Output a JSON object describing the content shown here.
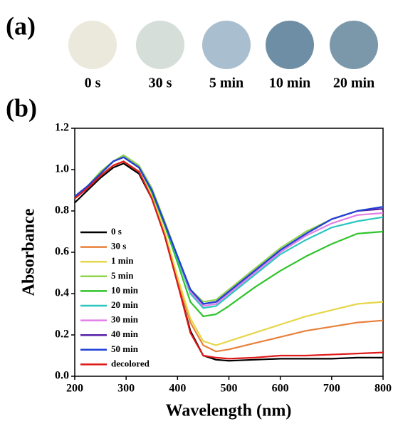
{
  "panel_a": {
    "label": "(a)",
    "samples": [
      {
        "label": "0 s",
        "color": "#ebe9dc"
      },
      {
        "label": "30 s",
        "color": "#d5ded8"
      },
      {
        "label": "5 min",
        "color": "#a9bfcf"
      },
      {
        "label": "10 min",
        "color": "#6e8ea5"
      },
      {
        "label": "20 min",
        "color": "#7b98ab"
      }
    ]
  },
  "chart_data": {
    "type": "line",
    "panel_label": "(b)",
    "x_label": "Wavelength (nm)",
    "y_label": "Absorbance",
    "x": [
      200,
      225,
      250,
      275,
      295,
      325,
      350,
      375,
      400,
      425,
      450,
      475,
      500,
      550,
      600,
      650,
      700,
      750,
      800
    ],
    "xlim": [
      200,
      800
    ],
    "xticks": [
      200,
      300,
      400,
      500,
      600,
      700,
      800
    ],
    "ylim": [
      0,
      1.2
    ],
    "yticks": [
      {
        "value": 0,
        "label": "0.0"
      },
      0.2,
      0.4,
      0.6,
      0.8,
      {
        "value": 1,
        "label": "1.0"
      },
      1.2
    ],
    "legend": "lower-left",
    "series": [
      {
        "name": "0 s",
        "color": "#000000",
        "values": [
          0.84,
          0.9,
          0.96,
          1.01,
          1.03,
          0.98,
          0.86,
          0.68,
          0.45,
          0.22,
          0.1,
          0.08,
          0.075,
          0.08,
          0.085,
          0.085,
          0.085,
          0.09,
          0.09
        ]
      },
      {
        "name": "30 s",
        "color": "#e8803a",
        "values": [
          0.86,
          0.91,
          0.97,
          1.02,
          1.04,
          0.99,
          0.87,
          0.69,
          0.47,
          0.26,
          0.15,
          0.12,
          0.13,
          0.16,
          0.19,
          0.22,
          0.24,
          0.26,
          0.27
        ]
      },
      {
        "name": "1 min",
        "color": "#e6d64a",
        "values": [
          0.86,
          0.91,
          0.97,
          1.02,
          1.04,
          0.99,
          0.87,
          0.7,
          0.48,
          0.28,
          0.17,
          0.15,
          0.17,
          0.21,
          0.25,
          0.29,
          0.32,
          0.35,
          0.36
        ]
      },
      {
        "name": "5 min",
        "color": "#8fd44a",
        "values": [
          0.87,
          0.92,
          0.99,
          1.04,
          1.07,
          1.02,
          0.91,
          0.75,
          0.58,
          0.42,
          0.36,
          0.37,
          0.42,
          0.52,
          0.62,
          0.7,
          0.76,
          0.8,
          0.82
        ]
      },
      {
        "name": "10 min",
        "color": "#2fc42a",
        "values": [
          0.87,
          0.92,
          0.98,
          1.04,
          1.06,
          1.01,
          0.89,
          0.73,
          0.55,
          0.36,
          0.29,
          0.3,
          0.34,
          0.43,
          0.51,
          0.58,
          0.64,
          0.69,
          0.7
        ]
      },
      {
        "name": "20 min",
        "color": "#2cc6c0",
        "values": [
          0.87,
          0.92,
          0.98,
          1.04,
          1.06,
          1.01,
          0.9,
          0.74,
          0.57,
          0.4,
          0.33,
          0.34,
          0.39,
          0.49,
          0.59,
          0.66,
          0.72,
          0.75,
          0.77
        ]
      },
      {
        "name": "30 min",
        "color": "#e27ee8",
        "values": [
          0.87,
          0.92,
          0.98,
          1.04,
          1.06,
          1.01,
          0.9,
          0.74,
          0.58,
          0.41,
          0.34,
          0.35,
          0.4,
          0.5,
          0.6,
          0.68,
          0.74,
          0.78,
          0.79
        ]
      },
      {
        "name": "40 min",
        "color": "#5a1fa8",
        "values": [
          0.87,
          0.92,
          0.98,
          1.04,
          1.06,
          1.01,
          0.9,
          0.74,
          0.58,
          0.42,
          0.35,
          0.36,
          0.41,
          0.51,
          0.61,
          0.69,
          0.76,
          0.8,
          0.81
        ]
      },
      {
        "name": "50 min",
        "color": "#2040d8",
        "values": [
          0.87,
          0.92,
          0.98,
          1.04,
          1.06,
          1.01,
          0.9,
          0.74,
          0.58,
          0.42,
          0.35,
          0.36,
          0.41,
          0.51,
          0.61,
          0.69,
          0.76,
          0.8,
          0.82
        ]
      },
      {
        "name": "decolored",
        "color": "#e01818",
        "values": [
          0.86,
          0.91,
          0.97,
          1.02,
          1.04,
          0.99,
          0.86,
          0.68,
          0.45,
          0.21,
          0.1,
          0.09,
          0.085,
          0.09,
          0.1,
          0.1,
          0.105,
          0.11,
          0.115
        ]
      }
    ]
  }
}
